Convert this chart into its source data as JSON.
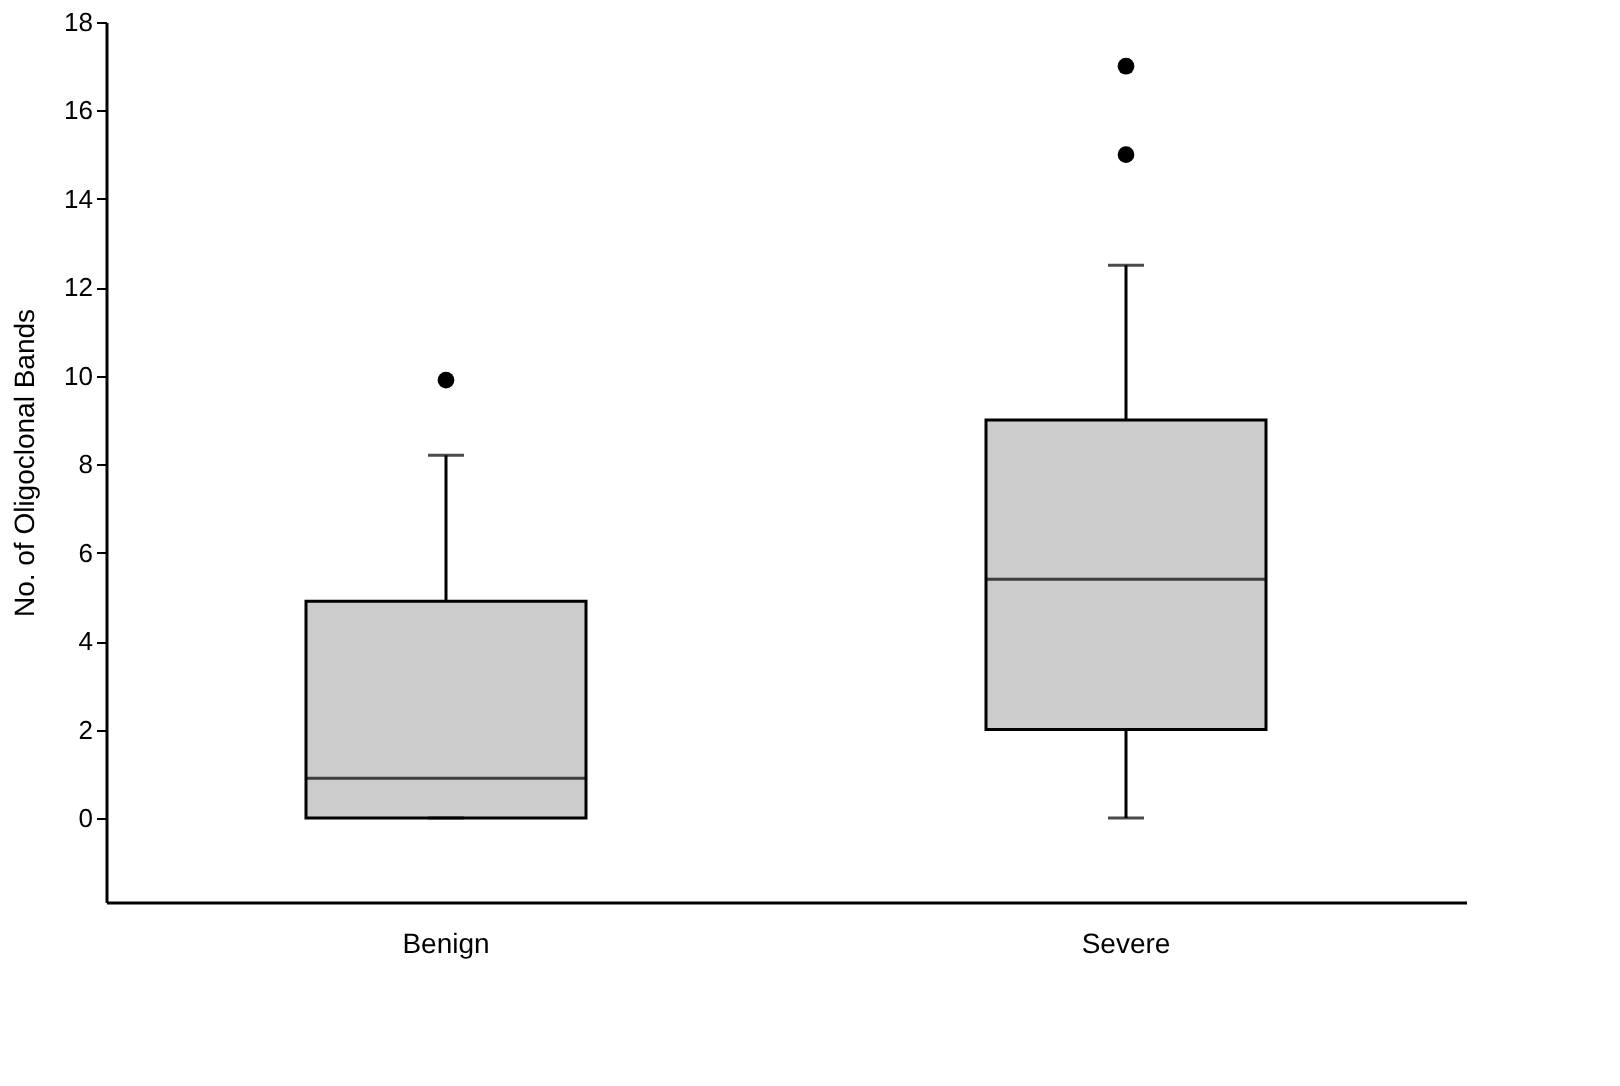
{
  "chart_data": {
    "type": "box",
    "ylabel": "No. of Oligoclonal Bands",
    "categories": [
      "Benign",
      "Severe"
    ],
    "boxes": [
      {
        "low": 0,
        "q1": 0,
        "median": 0.9,
        "q3": 4.9,
        "high": 8.2,
        "outliers": [
          9.9
        ]
      },
      {
        "low": 0,
        "q1": 2,
        "median": 5.4,
        "q3": 9,
        "high": 12.5,
        "outliers": [
          15,
          17
        ]
      }
    ],
    "color": "#cccccc",
    "ylim": [
      -1.9,
      18
    ],
    "yticks": [
      0,
      2,
      4,
      6,
      8,
      10,
      12,
      14,
      16,
      18
    ],
    "grid": false
  }
}
